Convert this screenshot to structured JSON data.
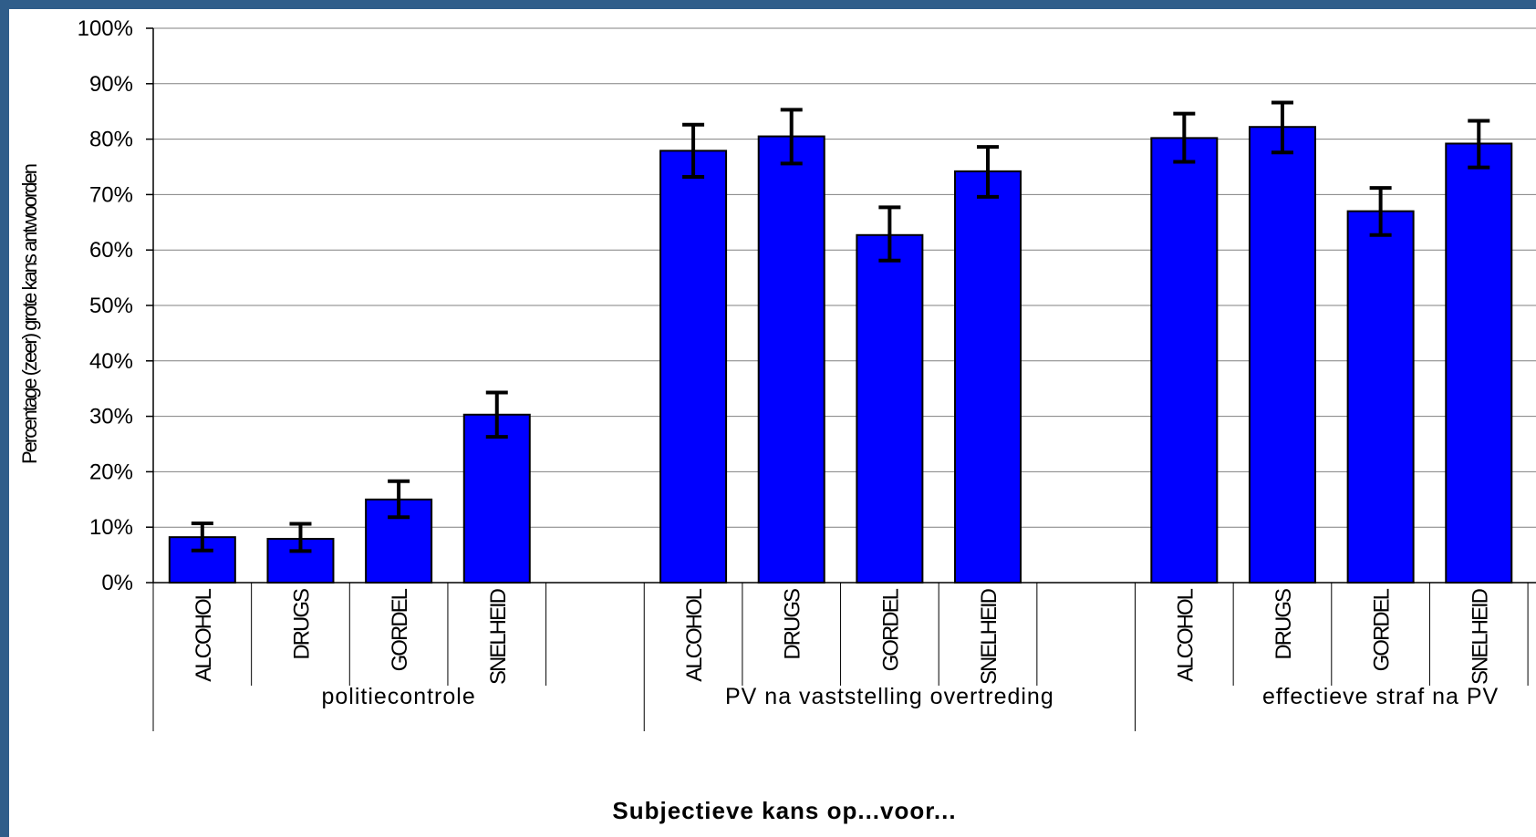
{
  "chart_data": {
    "type": "bar",
    "xlabel": "Subjectieve kans op...voor...",
    "ylabel": "Percentage (zeer) grote kans antwoorden",
    "ylim": [
      0,
      100
    ],
    "y_ticks": [
      "0%",
      "10%",
      "20%",
      "30%",
      "40%",
      "50%",
      "60%",
      "70%",
      "80%",
      "90%",
      "100%"
    ],
    "grid": true,
    "colors": {
      "bar": "#0000ff",
      "error_bar": "#000000",
      "grid": "#808080"
    },
    "groups": [
      {
        "label": "politiecontrole",
        "categories": [
          "ALCOHOL",
          "DRUGS",
          "GORDEL",
          "SNELHEID"
        ],
        "values": [
          8.2,
          7.9,
          15.0,
          30.3
        ],
        "error_low": [
          5.8,
          5.7,
          11.8,
          26.3
        ],
        "error_high": [
          10.7,
          10.6,
          18.3,
          34.3
        ]
      },
      {
        "label": "PV na vaststelling overtreding",
        "categories": [
          "ALCOHOL",
          "DRUGS",
          "GORDEL",
          "SNELHEID"
        ],
        "values": [
          77.9,
          80.5,
          62.7,
          74.2
        ],
        "error_low": [
          73.2,
          75.6,
          58.1,
          69.6
        ],
        "error_high": [
          82.6,
          85.3,
          67.7,
          78.6
        ]
      },
      {
        "label": "effectieve straf na PV",
        "categories": [
          "ALCOHOL",
          "DRUGS",
          "GORDEL",
          "SNELHEID"
        ],
        "values": [
          80.2,
          82.2,
          67.0,
          79.2
        ],
        "error_low": [
          75.9,
          77.6,
          62.7,
          74.9
        ],
        "error_high": [
          84.6,
          86.6,
          71.2,
          83.3
        ]
      }
    ]
  }
}
